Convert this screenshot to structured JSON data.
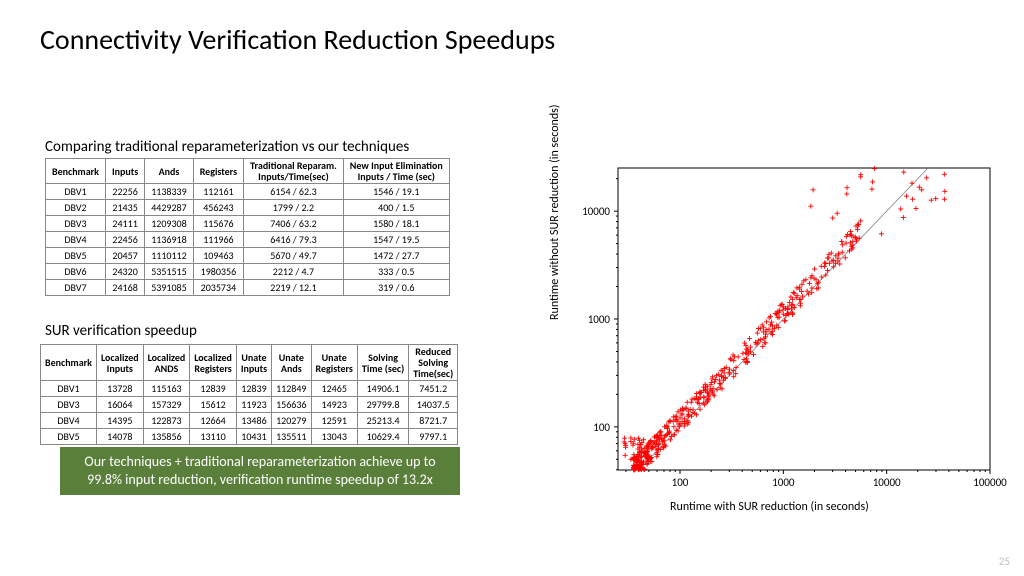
{
  "title": "Connectivity Verification Reduction Speedups",
  "subtitle1": "Comparing traditional reparameterization vs our techniques",
  "subtitle2": "SUR verification speedup",
  "pagenum": "25",
  "callout": "Our techniques + traditional reparameterization achieve up to 99.8% input reduction, verification runtime speedup of 13.2x",
  "table1": {
    "headers": [
      "Benchmark",
      "Inputs",
      "Ands",
      "Registers",
      "Traditional Reparam.\nInputs/Time(sec)",
      "New Input Elimination\nInputs / Time (sec)"
    ],
    "rows": [
      [
        "DBV1",
        "22256",
        "1138339",
        "112161",
        "6154 / 62.3",
        "1546 / 19.1"
      ],
      [
        "DBV2",
        "21435",
        "4429287",
        "456243",
        "1799 / 2.2",
        "400 / 1.5"
      ],
      [
        "DBV3",
        "24111",
        "1209308",
        "115676",
        "7406 / 63.2",
        "1580 / 18.1"
      ],
      [
        "DBV4",
        "22456",
        "1136918",
        "111966",
        "6416 / 79.3",
        "1547 / 19.5"
      ],
      [
        "DBV5",
        "20457",
        "1110112",
        "109463",
        "5670 / 49.7",
        "1472 / 27.7"
      ],
      [
        "DBV6",
        "24320",
        "5351515",
        "1980356",
        "2212 / 4.7",
        "333 / 0.5"
      ],
      [
        "DBV7",
        "24168",
        "5391085",
        "2035734",
        "2219 / 12.1",
        "319 / 0.6"
      ]
    ]
  },
  "table2": {
    "headers": [
      "Benchmark",
      "Localized\nInputs",
      "Localized\nANDS",
      "Localized\nRegisters",
      "Unate\nInputs",
      "Unate\nAnds",
      "Unate\nRegisters",
      "Solving\nTime (sec)",
      "Reduced\nSolving\nTime(sec)"
    ],
    "rows": [
      [
        "DBV1",
        "13728",
        "115163",
        "12839",
        "12839",
        "112849",
        "12465",
        "14906.1",
        "7451.2"
      ],
      [
        "DBV3",
        "16064",
        "157329",
        "15612",
        "11923",
        "156636",
        "14923",
        "29799.8",
        "14037.5"
      ],
      [
        "DBV4",
        "14395",
        "122873",
        "12664",
        "13486",
        "120279",
        "12591",
        "25213.4",
        "8721.7"
      ],
      [
        "DBV5",
        "14078",
        "135856",
        "13110",
        "10431",
        "135511",
        "13043",
        "10629.4",
        "9797.1"
      ]
    ]
  },
  "chart": {
    "type": "scatter-loglog",
    "xlabel": "Runtime with SUR reduction (in seconds)",
    "ylabel": "Runtime without SUR reduction (in seconds)",
    "xlim_log10": [
      1.4,
      5.0
    ],
    "ylim_log10": [
      1.6,
      4.4
    ],
    "xticks": [
      100,
      1000,
      10000,
      100000
    ],
    "yticks": [
      100,
      1000,
      10000
    ],
    "marker": "+",
    "marker_color": "#ff0000",
    "marker_size": 5,
    "diag_line_color": "#808080",
    "background": "#ffffff",
    "axis_color": "#000000",
    "tick_fontsize": 11,
    "label_fontsize": 12,
    "n_points": 500
  }
}
